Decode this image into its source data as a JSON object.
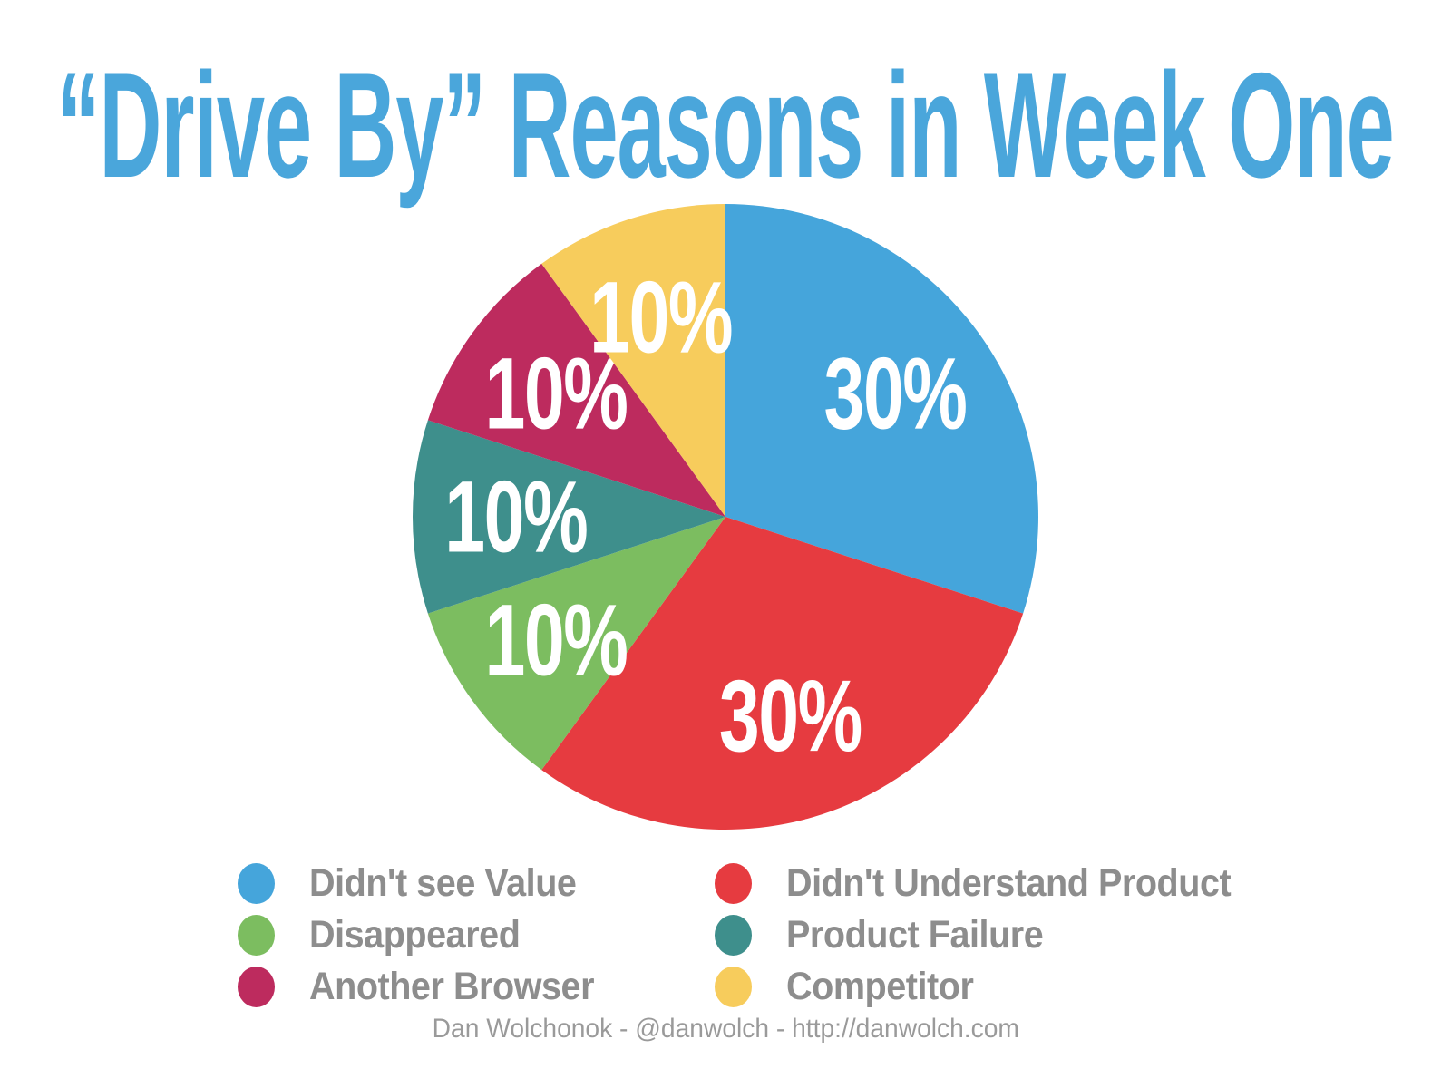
{
  "title": "“Drive By” Reasons in Week One",
  "footer": "Dan Wolchonok - @danwolch - http://danwolch.com",
  "colors": {
    "background": "#ffffff",
    "title_text": "#4aa6db",
    "legend_text": "#8d8d8d",
    "footer_text": "#9a9a9a",
    "slice_label_text": "#ffffff"
  },
  "chart_data": {
    "type": "pie",
    "title": "“Drive By” Reasons in Week One",
    "start_angle": "12-oclock",
    "direction": "clockwise",
    "data_labels": "percent-inside-slices",
    "grid": false,
    "legend_position": "bottom",
    "legend_columns": 2,
    "slices": [
      {
        "label": "Didn't see Value",
        "value": 30,
        "value_label": "30%",
        "color": "#45a5db"
      },
      {
        "label": "Didn't Understand Product",
        "value": 30,
        "value_label": "30%",
        "color": "#e63b40"
      },
      {
        "label": "Disappeared",
        "value": 10,
        "value_label": "10%",
        "color": "#7cbd60"
      },
      {
        "label": "Product Failure",
        "value": 10,
        "value_label": "10%",
        "color": "#3e8f8c"
      },
      {
        "label": "Another Browser",
        "value": 10,
        "value_label": "10%",
        "color": "#bd2b5e"
      },
      {
        "label": "Competitor",
        "value": 10,
        "value_label": "10%",
        "color": "#f7cc5c"
      }
    ]
  },
  "legend": {
    "items": [
      {
        "label": "Didn't see Value",
        "color": "#45a5db"
      },
      {
        "label": "Disappeared",
        "color": "#7cbd60"
      },
      {
        "label": "Another Browser",
        "color": "#bd2b5e"
      },
      {
        "label": "Didn't Understand Product",
        "color": "#e63b40"
      },
      {
        "label": "Product Failure",
        "color": "#3e8f8c"
      },
      {
        "label": "Competitor",
        "color": "#f7cc5c"
      }
    ]
  }
}
